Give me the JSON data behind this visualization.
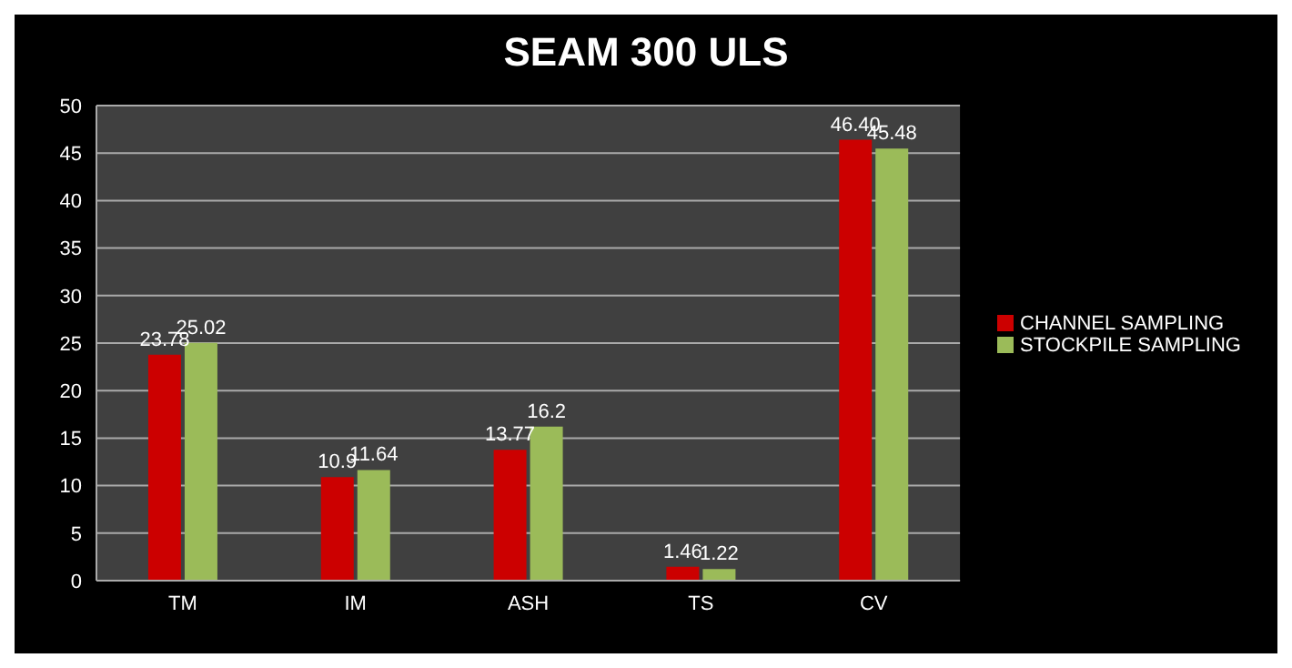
{
  "chart_data": {
    "type": "bar",
    "title": "SEAM 300 ULS",
    "categories": [
      "TM",
      "IM",
      "ASH",
      "TS",
      "CV"
    ],
    "series": [
      {
        "name": "CHANNEL SAMPLING",
        "color": "#cc0000",
        "values": [
          23.78,
          10.9,
          13.77,
          1.46,
          46.4
        ],
        "value_labels": [
          "23.78",
          "10.9",
          "13.77",
          "1.46",
          "46.40"
        ]
      },
      {
        "name": "STOCKPILE SAMPLING",
        "color": "#9bbb59",
        "values": [
          25.02,
          11.64,
          16.2,
          1.22,
          45.48
        ],
        "value_labels": [
          "25.02",
          "11.64",
          "16.2",
          "1.22",
          "45.48"
        ]
      }
    ],
    "ylim": [
      0,
      50
    ],
    "yticks": [
      0,
      5,
      10,
      15,
      20,
      25,
      30,
      35,
      40,
      45,
      50
    ],
    "grid": "y",
    "legend": "right"
  }
}
